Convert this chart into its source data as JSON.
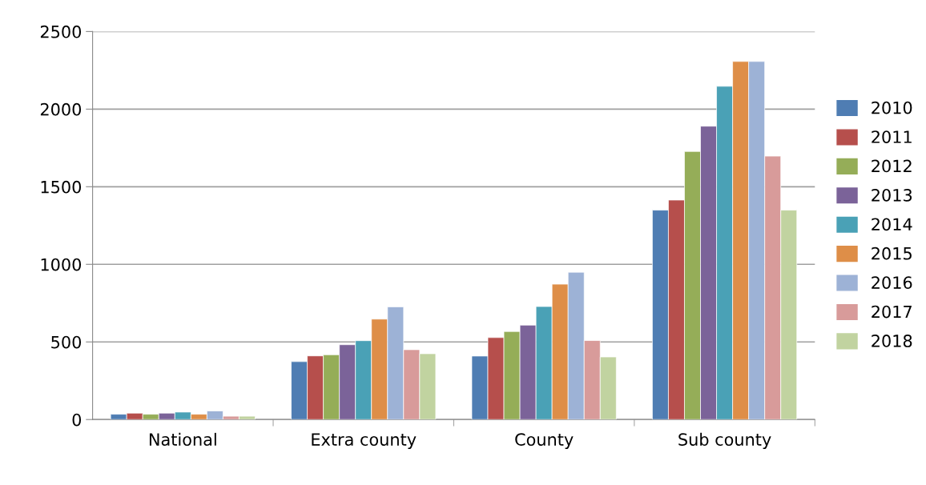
{
  "chart_data": {
    "type": "bar",
    "categories": [
      "National",
      "Extra county",
      "County",
      "Sub county"
    ],
    "ylim": [
      0,
      2500
    ],
    "yticks": [
      0,
      500,
      1000,
      1500,
      2000,
      2500
    ],
    "grid": "y",
    "legend": "right",
    "series": [
      {
        "name": "2010",
        "color": "#4f7db3",
        "values": [
          34,
          373,
          409,
          1349
        ]
      },
      {
        "name": "2011",
        "color": "#b64f4c",
        "values": [
          41,
          410,
          528,
          1414
        ]
      },
      {
        "name": "2012",
        "color": "#95ad58",
        "values": [
          34,
          417,
          567,
          1727
        ]
      },
      {
        "name": "2013",
        "color": "#7b6399",
        "values": [
          41,
          482,
          608,
          1890
        ]
      },
      {
        "name": "2014",
        "color": "#4aa1b6",
        "values": [
          48,
          508,
          728,
          2147
        ]
      },
      {
        "name": "2015",
        "color": "#de8e48",
        "values": [
          34,
          647,
          872,
          2307
        ]
      },
      {
        "name": "2016",
        "color": "#9db2d6",
        "values": [
          55,
          726,
          949,
          2307
        ]
      },
      {
        "name": "2017",
        "color": "#d89b9a",
        "values": [
          21,
          450,
          509,
          1697
        ]
      },
      {
        "name": "2018",
        "color": "#c1d3a0",
        "values": [
          21,
          424,
          403,
          1349
        ]
      }
    ]
  }
}
